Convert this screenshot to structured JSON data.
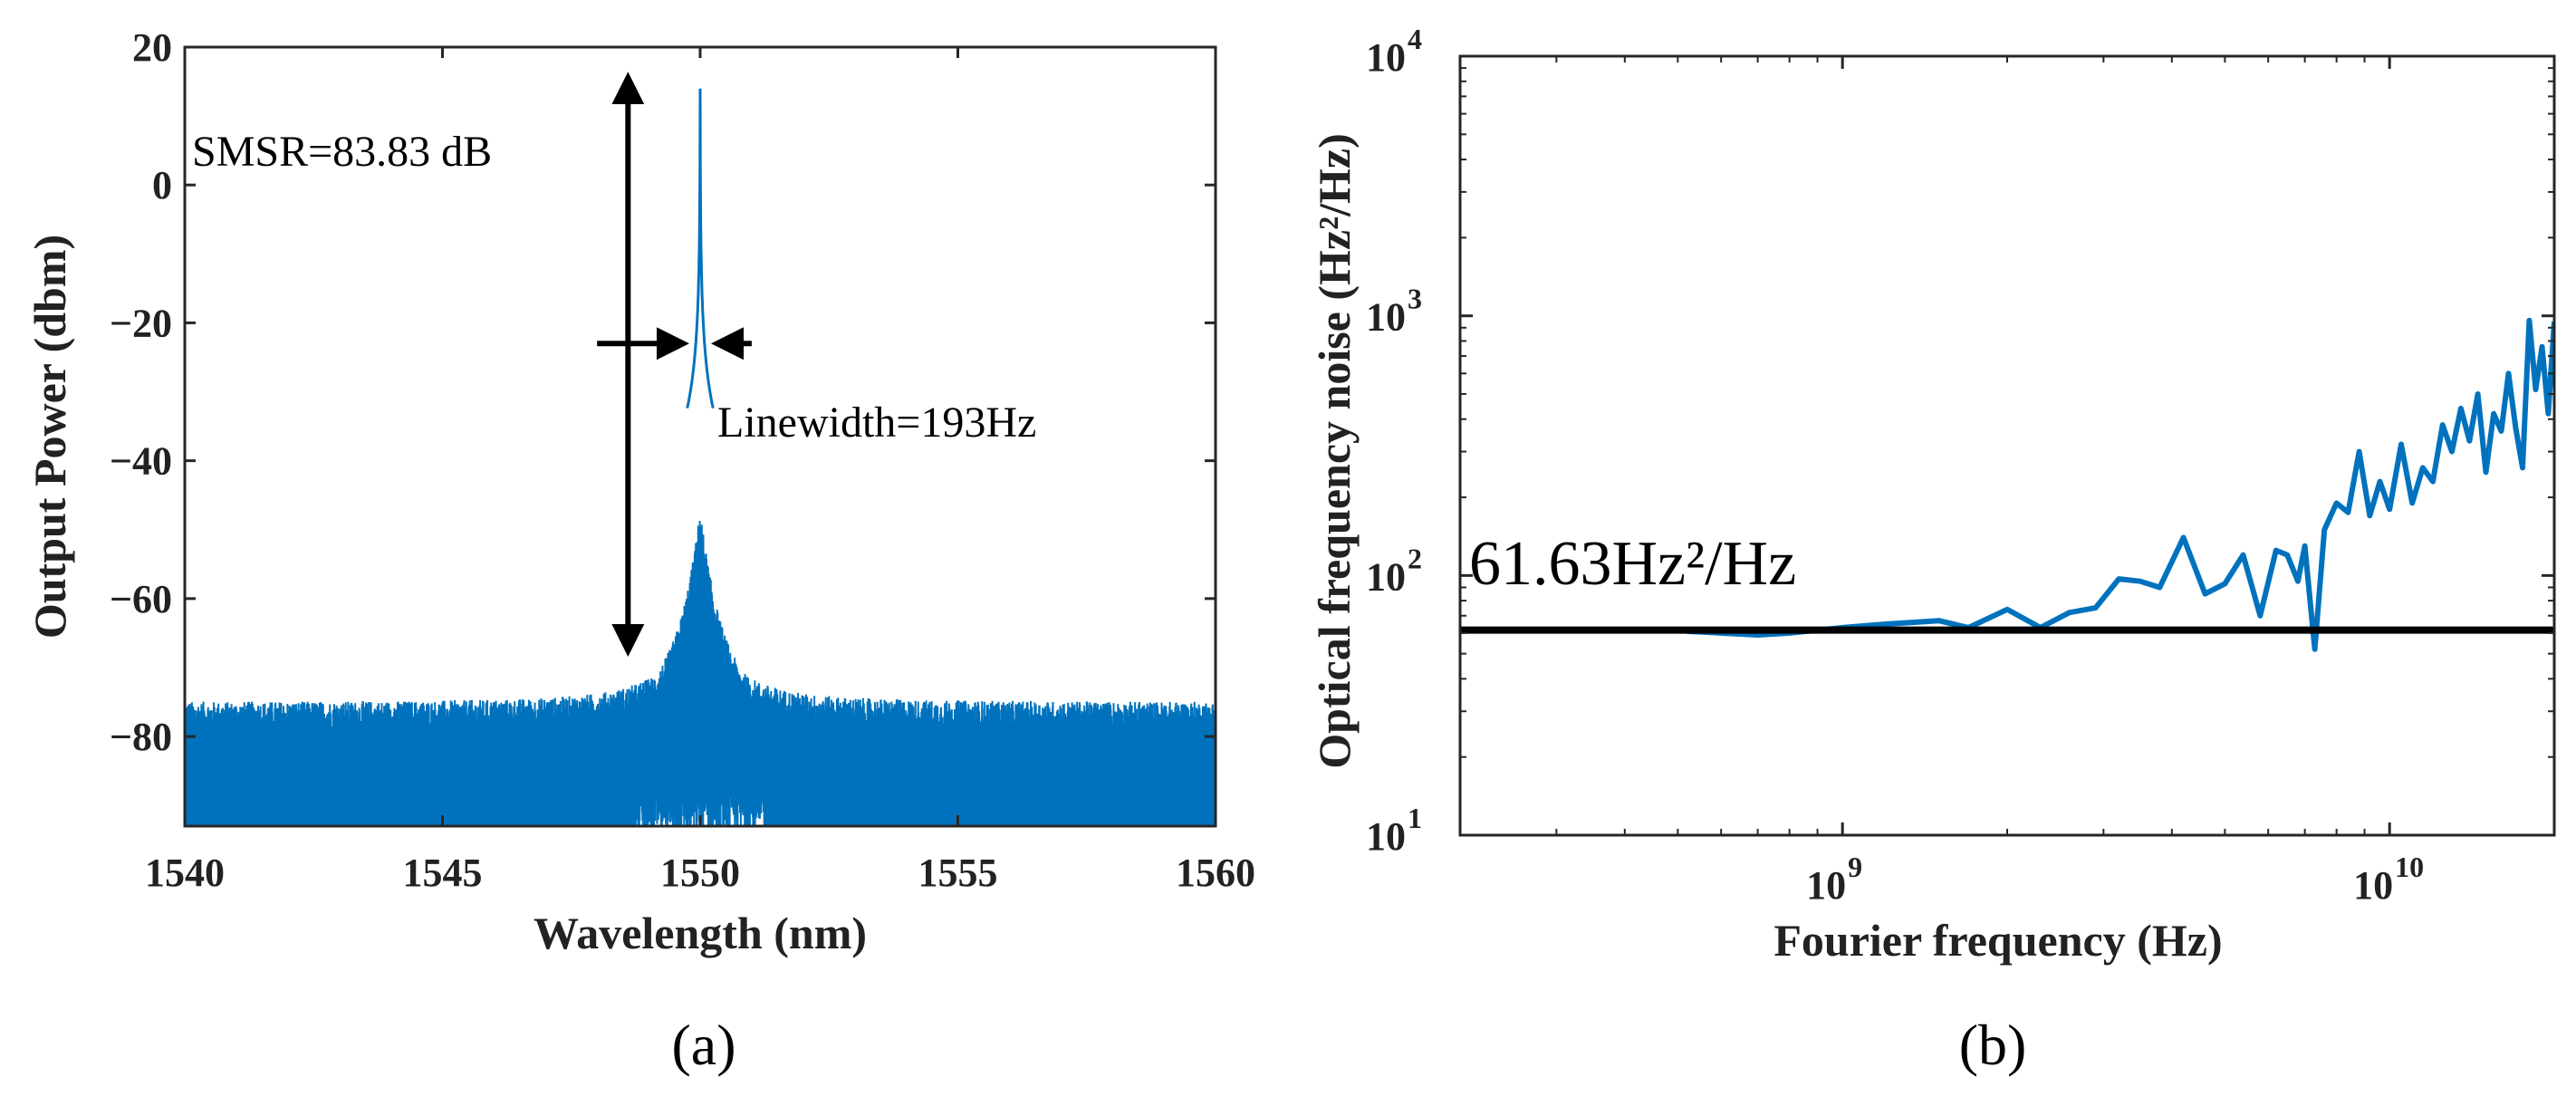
{
  "colors": {
    "series": "#0072BD",
    "annotation": "#000000",
    "axis": "#262626"
  },
  "chart_data": [
    {
      "panel": "(a)",
      "type": "line",
      "title": "",
      "xlabel": "Wavelength (nm)",
      "ylabel": "Output Power (dbm)",
      "xlim": [
        1540,
        1560
      ],
      "ylim": [
        -93,
        20
      ],
      "xticks": [
        1540,
        1545,
        1550,
        1555,
        1560
      ],
      "xtick_labels": [
        "1540",
        "1545",
        "1550",
        "1555",
        "1560"
      ],
      "yticks": [
        20,
        0,
        -20,
        -40,
        -60,
        -80
      ],
      "ytick_labels": [
        "20",
        "0",
        "−20",
        "−40",
        "−60",
        "−80"
      ],
      "series": [
        {
          "name": "spectrum",
          "peak_x": 1550,
          "peak_y": 14,
          "noise_floor_top": -75,
          "noise_floor_bottom": -93,
          "note": "lasing peak at 1550 nm over a noise floor about -77 dBm"
        }
      ],
      "annotations": {
        "smsr": "SMSR=83.83 dB",
        "linewidth": "Linewidth=193Hz",
        "smsr_arrow": {
          "x": 1548.6,
          "y_top": 18,
          "y_bottom": -70
        },
        "linewidth_arrows": {
          "y": -23,
          "x_left": 1548.0,
          "x_right": 1551.0,
          "x_center": 1550
        }
      }
    },
    {
      "panel": "(b)",
      "type": "line",
      "title": "",
      "xlabel": "Fourier frequency (Hz)",
      "ylabel": "Optical frequency noise (Hz²/Hz)",
      "xscale": "log",
      "yscale": "log",
      "xlim": [
        200000000,
        20000000000
      ],
      "ylim": [
        10,
        10000
      ],
      "xticks": [
        1000000000,
        10000000000
      ],
      "xtick_labels": [
        {
          "base": "10",
          "exp": "9"
        },
        {
          "base": "10",
          "exp": "10"
        }
      ],
      "yticks": [
        10,
        100,
        1000,
        10000
      ],
      "ytick_labels": [
        {
          "base": "10",
          "exp": "1"
        },
        {
          "base": "10",
          "exp": "2"
        },
        {
          "base": "10",
          "exp": "3"
        },
        {
          "base": "10",
          "exp": "4"
        }
      ],
      "reference_line": {
        "y": 61.63,
        "label": "61.63Hz²/Hz"
      },
      "series": [
        {
          "name": "frequency noise",
          "x": [
            520000000,
            600000000,
            700000000,
            800000000,
            1000000000,
            1200000000,
            1500000000,
            1700000000,
            2000000000,
            2300000000,
            2600000000,
            2900000000,
            3200000000,
            3500000000,
            3800000000,
            4200000000,
            4600000000,
            5000000000,
            5400000000,
            5800000000,
            6200000000,
            6500000000,
            6800000000,
            7000000000,
            7300000000,
            7600000000,
            8000000000,
            8400000000,
            8800000000,
            9200000000,
            9600000000,
            10000000000,
            10500000000,
            11000000000,
            11500000000,
            12000000000,
            12500000000,
            13000000000,
            13500000000,
            14000000000,
            14500000000,
            15000000000,
            15500000000,
            16000000000,
            16500000000,
            17000000000,
            17500000000,
            18000000000,
            18500000000,
            19000000000,
            19500000000,
            20000000000
          ],
          "y": [
            61,
            60,
            59,
            60,
            63,
            65,
            67,
            63,
            74,
            63,
            72,
            75,
            97,
            95,
            90,
            140,
            85,
            93,
            120,
            70,
            125,
            120,
            95,
            130,
            52,
            150,
            190,
            175,
            300,
            170,
            230,
            180,
            320,
            190,
            260,
            230,
            380,
            300,
            440,
            330,
            500,
            250,
            420,
            360,
            600,
            370,
            260,
            960,
            520,
            760,
            420,
            950
          ]
        }
      ]
    }
  ]
}
